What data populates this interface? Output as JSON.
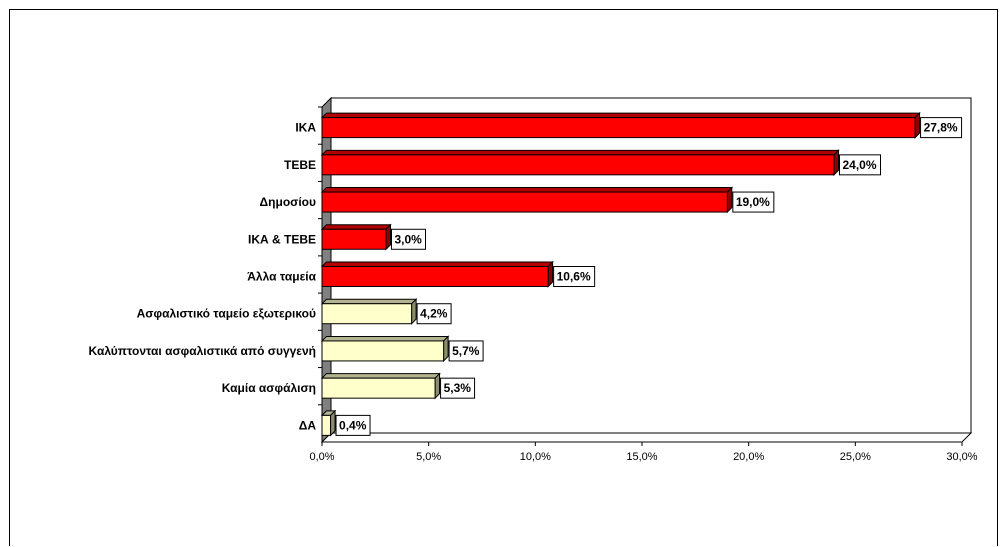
{
  "chart_data": {
    "type": "bar",
    "orientation": "horizontal",
    "categories": [
      "ΙΚΑ",
      "ΤΕΒΕ",
      "Δημοσίου",
      "ΙΚΑ & ΤΕΒΕ",
      "Άλλα ταμεία",
      "Ασφαλιστικό ταμείο εξωτερικού",
      "Καλύπτονται ασφαλιστικά από συγγενή",
      "Καμία ασφάλιση",
      "ΔΑ"
    ],
    "values": [
      27.8,
      24.0,
      19.0,
      3.0,
      10.6,
      4.2,
      5.7,
      5.3,
      0.4
    ],
    "value_labels": [
      "27,8%",
      "24,0%",
      "19,0%",
      "3,0%",
      "10,6%",
      "4,2%",
      "5,7%",
      "5,3%",
      "0,4%"
    ],
    "bar_colors": [
      "#ff0000",
      "#ff0000",
      "#ff0000",
      "#ff0000",
      "#ff0000",
      "#ffffcc",
      "#ffffcc",
      "#ffffcc",
      "#ffffcc"
    ],
    "xlim": [
      0,
      30
    ],
    "xticks": [
      0,
      5,
      10,
      15,
      20,
      25,
      30
    ],
    "xtick_labels": [
      "0,0%",
      "5,0%",
      "10,0%",
      "15,0%",
      "20,0%",
      "25,0%",
      "30,0%"
    ],
    "grid": false,
    "legend": "none",
    "style": "3d"
  }
}
